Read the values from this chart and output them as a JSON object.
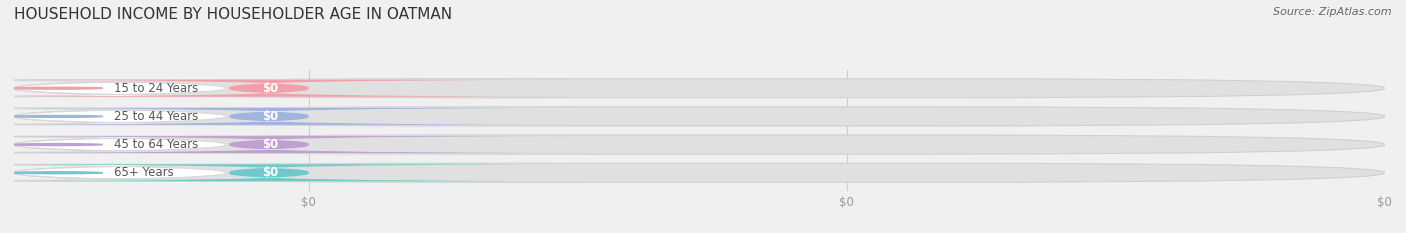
{
  "title": "HOUSEHOLD INCOME BY HOUSEHOLDER AGE IN OATMAN",
  "source": "Source: ZipAtlas.com",
  "categories": [
    "15 to 24 Years",
    "25 to 44 Years",
    "45 to 64 Years",
    "65+ Years"
  ],
  "values": [
    0,
    0,
    0,
    0
  ],
  "bar_colors": [
    "#f0a0a8",
    "#a0b4e0",
    "#c0a0d0",
    "#70c8cc"
  ],
  "background_color": "#f0f0f0",
  "track_color": "#e0e0e0",
  "label_pill_color": "#ffffff",
  "title_fontsize": 11,
  "tick_label_color": "#999999",
  "category_label_color": "#555555",
  "value_text_color": "#ffffff"
}
